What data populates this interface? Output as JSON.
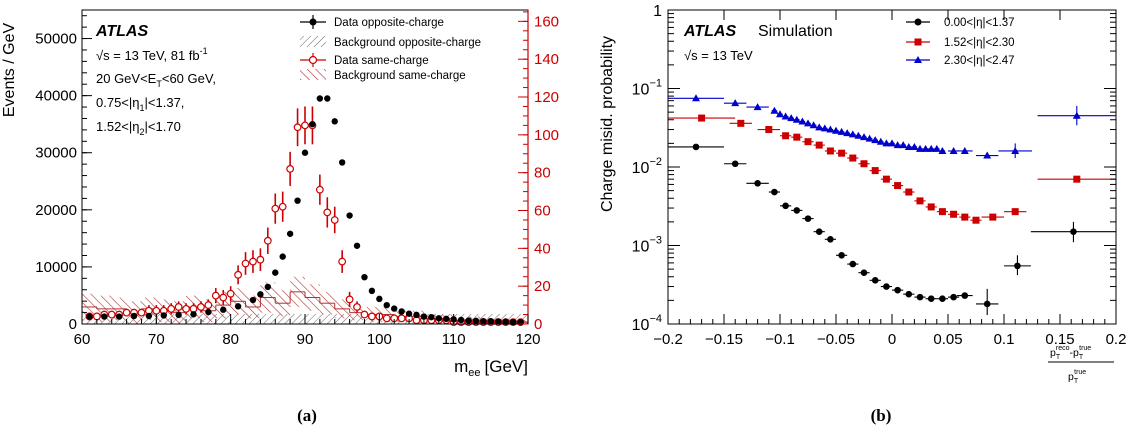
{
  "panel_labels": [
    "(a)",
    "(b)"
  ],
  "chart_data": [
    {
      "type": "scatter",
      "xlabel": "m",
      "xlabel_sub": "ee",
      "xlabel_unit": "[GeV]",
      "ylabel": "Events / GeV",
      "xlim": [
        60,
        120
      ],
      "ylim": [
        0,
        55000
      ],
      "y2lim": [
        0,
        166
      ],
      "y2_color": "#cc0000",
      "xticks": [
        60,
        70,
        80,
        90,
        100,
        110,
        120
      ],
      "yticks": [
        0,
        10000,
        20000,
        30000,
        40000,
        50000
      ],
      "y2ticks": [
        0,
        20,
        40,
        60,
        80,
        100,
        120,
        140,
        160
      ],
      "annotations": {
        "atlas": "ATLAS",
        "sqrt_s": "√s = 13 TeV, 81 fb",
        "sqrt_s_sup": "-1",
        "et_cut_a": "20 GeV<E",
        "et_cut_sub": "T",
        "et_cut_b": "<60 GeV,",
        "eta1_a": "0.75<|η",
        "eta1_sub": "1",
        "eta1_b": "|<1.37,",
        "eta2_a": "1.52<|η",
        "eta2_sub": "2",
        "eta2_b": "|<1.70"
      },
      "legend": {
        "position": "top-right",
        "entries": [
          "Data opposite-charge",
          "Background opposite-charge",
          "Data same-charge",
          "Background same-charge"
        ]
      },
      "series": [
        {
          "name": "Data opposite-charge",
          "axis": "left",
          "color": "#000000",
          "marker": "filled-circle",
          "x": [
            61,
            63,
            65,
            67,
            69,
            71,
            73,
            75,
            77,
            79,
            81,
            83,
            84,
            85,
            86,
            87,
            88,
            89,
            90,
            91,
            92,
            93,
            94,
            95,
            96,
            97,
            98,
            99,
            100,
            101,
            102,
            103,
            104,
            105,
            106,
            107,
            108,
            109,
            110,
            111,
            112,
            113,
            114,
            115,
            116,
            117,
            118,
            119
          ],
          "y": [
            1300,
            1300,
            1300,
            1400,
            1400,
            1500,
            1600,
            1700,
            2100,
            2500,
            3100,
            4200,
            5200,
            6500,
            9000,
            11800,
            15800,
            21600,
            30000,
            35000,
            39500,
            39500,
            35500,
            28300,
            19000,
            13700,
            8200,
            5800,
            4400,
            3300,
            2700,
            2200,
            1800,
            1600,
            1300,
            1200,
            1000,
            900,
            800,
            700,
            600,
            550,
            500,
            500,
            450,
            400,
            350,
            300
          ]
        },
        {
          "name": "Data same-charge",
          "axis": "right",
          "color": "#cc0000",
          "marker": "open-circle",
          "x": [
            61,
            62,
            63,
            64,
            65,
            66,
            67,
            68,
            69,
            70,
            71,
            72,
            73,
            74,
            75,
            76,
            77,
            78,
            79,
            80,
            81,
            82,
            83,
            84,
            85,
            86,
            87,
            88,
            89,
            90,
            91,
            92,
            93,
            94,
            95,
            96,
            97,
            98,
            99,
            100,
            101,
            102,
            103,
            104,
            105,
            106,
            107,
            108,
            109,
            110,
            111,
            112,
            113,
            114,
            115,
            116,
            117,
            118,
            119
          ],
          "y": [
            4,
            4,
            5,
            5,
            5,
            6,
            6,
            6,
            7,
            7,
            7,
            8,
            9,
            8,
            8,
            9,
            10,
            15,
            14,
            16,
            26,
            32,
            33,
            34,
            44,
            61,
            62,
            82,
            104,
            105,
            105,
            71,
            59,
            55,
            33,
            13,
            9,
            5,
            4,
            4,
            3,
            3,
            3,
            3,
            2,
            2,
            2,
            2,
            2,
            1,
            1,
            1,
            1,
            1,
            1,
            1,
            1,
            1,
            1
          ],
          "yerr": [
            2,
            2,
            2,
            2,
            2,
            2,
            2,
            2,
            3,
            3,
            3,
            3,
            3,
            3,
            3,
            3,
            3,
            4,
            4,
            4,
            5,
            6,
            6,
            6,
            7,
            8,
            8,
            9,
            10,
            10,
            10,
            8,
            8,
            7,
            6,
            4,
            3,
            2,
            2,
            2,
            2,
            2,
            2,
            2,
            2,
            2,
            2,
            1,
            1,
            1,
            1,
            1,
            1,
            1,
            1,
            1,
            1,
            1,
            1
          ]
        },
        {
          "name": "Background same-charge",
          "axis": "right",
          "color": "#b03030",
          "marker": "hatched-band",
          "x": [
            60,
            62,
            64,
            66,
            68,
            70,
            72,
            74,
            76,
            78,
            80,
            82,
            84,
            86,
            88,
            90,
            92,
            94,
            96,
            98,
            100,
            102,
            104,
            106,
            108,
            110,
            112,
            114,
            116,
            118,
            120
          ],
          "y": [
            9,
            8,
            8,
            6,
            8,
            7,
            6,
            9,
            7,
            10,
            12,
            9,
            14,
            11,
            17,
            14,
            11,
            8,
            6,
            5,
            5,
            4,
            4,
            3,
            3,
            2,
            2,
            2,
            2,
            1,
            1
          ],
          "yerr": [
            7,
            7,
            6,
            6,
            6,
            6,
            6,
            6,
            6,
            7,
            7,
            6,
            8,
            7,
            8,
            7,
            6,
            5,
            4,
            4,
            4,
            3,
            3,
            2,
            2,
            2,
            2,
            1,
            1,
            1,
            1
          ]
        }
      ]
    },
    {
      "type": "scatter",
      "xlabel_num": "p",
      "xlabel_num_sub": "T",
      "xlabel_num_sup": "reco",
      "xlabel_num_mid": "-p",
      "xlabel_num_sub2": "T",
      "xlabel_num_sup2": "true",
      "xlabel_den": "p",
      "xlabel_den_sub": "T",
      "xlabel_den_sup": "true",
      "ylabel": "Charge misid. probability",
      "xlim": [
        -0.2,
        0.2
      ],
      "ylim": [
        0.0001,
        1
      ],
      "yscale": "log",
      "xticks": [
        -0.2,
        -0.15,
        -0.1,
        -0.05,
        0,
        0.05,
        0.1,
        0.15,
        0.2
      ],
      "xtick_labels": [
        "−0.2",
        "−0.15",
        "−0.1",
        "−0.05",
        "0",
        "0.05",
        "0.1",
        "0.15",
        "0.2"
      ],
      "ytick_base": "10",
      "ytick_exps": [
        "−4",
        "−3",
        "−2",
        "−1",
        ""
      ],
      "ytick_top": "1",
      "annotations": {
        "atlas": "ATLAS",
        "simulation": "Simulation",
        "sqrt_s": "√s = 13 TeV"
      },
      "legend": {
        "position": "top-right",
        "entries": [
          "0.00<|η|<1.37",
          "1.52<|η|<2.30",
          "2.30<|η|<2.47"
        ]
      },
      "series": [
        {
          "name": "0.00<|η|<1.37",
          "color": "#000000",
          "marker": "circle",
          "x": [
            -0.175,
            -0.14,
            -0.12,
            -0.105,
            -0.095,
            -0.085,
            -0.075,
            -0.065,
            -0.055,
            -0.045,
            -0.035,
            -0.025,
            -0.015,
            -0.005,
            0.005,
            0.015,
            0.025,
            0.035,
            0.045,
            0.055,
            0.065,
            0.085,
            0.112,
            0.162
          ],
          "xerr": [
            0.025,
            0.01,
            0.01,
            0.005,
            0.005,
            0.005,
            0.005,
            0.005,
            0.005,
            0.005,
            0.005,
            0.005,
            0.005,
            0.005,
            0.005,
            0.005,
            0.005,
            0.005,
            0.005,
            0.005,
            0.007,
            0.01,
            0.012,
            0.038
          ],
          "y": [
            0.018,
            0.011,
            0.0062,
            0.0048,
            0.0032,
            0.0028,
            0.0022,
            0.0015,
            0.0012,
            0.00075,
            0.00058,
            0.00045,
            0.00036,
            0.0003,
            0.00027,
            0.00024,
            0.00022,
            0.00021,
            0.00021,
            0.00022,
            0.00023,
            0.00018,
            0.00055,
            0.0015
          ]
        },
        {
          "name": "1.52<|η|<2.30",
          "color": "#cc0000",
          "marker": "square",
          "x": [
            -0.17,
            -0.135,
            -0.11,
            -0.095,
            -0.085,
            -0.075,
            -0.065,
            -0.055,
            -0.045,
            -0.035,
            -0.025,
            -0.015,
            -0.005,
            0.005,
            0.015,
            0.025,
            0.035,
            0.045,
            0.055,
            0.065,
            0.075,
            0.09,
            0.11,
            0.165
          ],
          "xerr": [
            0.03,
            0.01,
            0.01,
            0.005,
            0.005,
            0.005,
            0.005,
            0.005,
            0.005,
            0.005,
            0.005,
            0.005,
            0.005,
            0.005,
            0.005,
            0.005,
            0.005,
            0.005,
            0.005,
            0.005,
            0.005,
            0.01,
            0.01,
            0.035
          ],
          "y": [
            0.042,
            0.036,
            0.03,
            0.025,
            0.024,
            0.021,
            0.019,
            0.016,
            0.015,
            0.013,
            0.011,
            0.009,
            0.007,
            0.0058,
            0.0048,
            0.0037,
            0.0031,
            0.0027,
            0.0025,
            0.0023,
            0.0021,
            0.0023,
            0.0027,
            0.007
          ]
        },
        {
          "name": "2.30<|η|<2.47",
          "color": "#0000cc",
          "marker": "triangle",
          "x": [
            -0.175,
            -0.14,
            -0.12,
            -0.105,
            -0.1,
            -0.095,
            -0.09,
            -0.085,
            -0.08,
            -0.075,
            -0.07,
            -0.065,
            -0.06,
            -0.055,
            -0.05,
            -0.045,
            -0.04,
            -0.035,
            -0.03,
            -0.025,
            -0.02,
            -0.015,
            -0.01,
            -0.005,
            0,
            0.005,
            0.01,
            0.015,
            0.02,
            0.025,
            0.03,
            0.035,
            0.04,
            0.045,
            0.055,
            0.065,
            0.085,
            0.11,
            0.165
          ],
          "xerr": [
            0.025,
            0.01,
            0.01,
            0.0025,
            0.0025,
            0.0025,
            0.0025,
            0.0025,
            0.0025,
            0.0025,
            0.0025,
            0.0025,
            0.0025,
            0.0025,
            0.0025,
            0.0025,
            0.0025,
            0.0025,
            0.0025,
            0.0025,
            0.0025,
            0.0025,
            0.0025,
            0.0025,
            0.0025,
            0.0025,
            0.0025,
            0.0025,
            0.0025,
            0.0025,
            0.0025,
            0.0025,
            0.0025,
            0.0025,
            0.005,
            0.007,
            0.01,
            0.015,
            0.035
          ],
          "y": [
            0.075,
            0.065,
            0.058,
            0.052,
            0.047,
            0.044,
            0.042,
            0.04,
            0.038,
            0.036,
            0.034,
            0.032,
            0.031,
            0.03,
            0.029,
            0.028,
            0.027,
            0.026,
            0.025,
            0.024,
            0.023,
            0.022,
            0.021,
            0.02,
            0.02,
            0.019,
            0.019,
            0.018,
            0.018,
            0.017,
            0.017,
            0.017,
            0.017,
            0.016,
            0.016,
            0.016,
            0.014,
            0.016,
            0.045
          ]
        }
      ]
    }
  ]
}
